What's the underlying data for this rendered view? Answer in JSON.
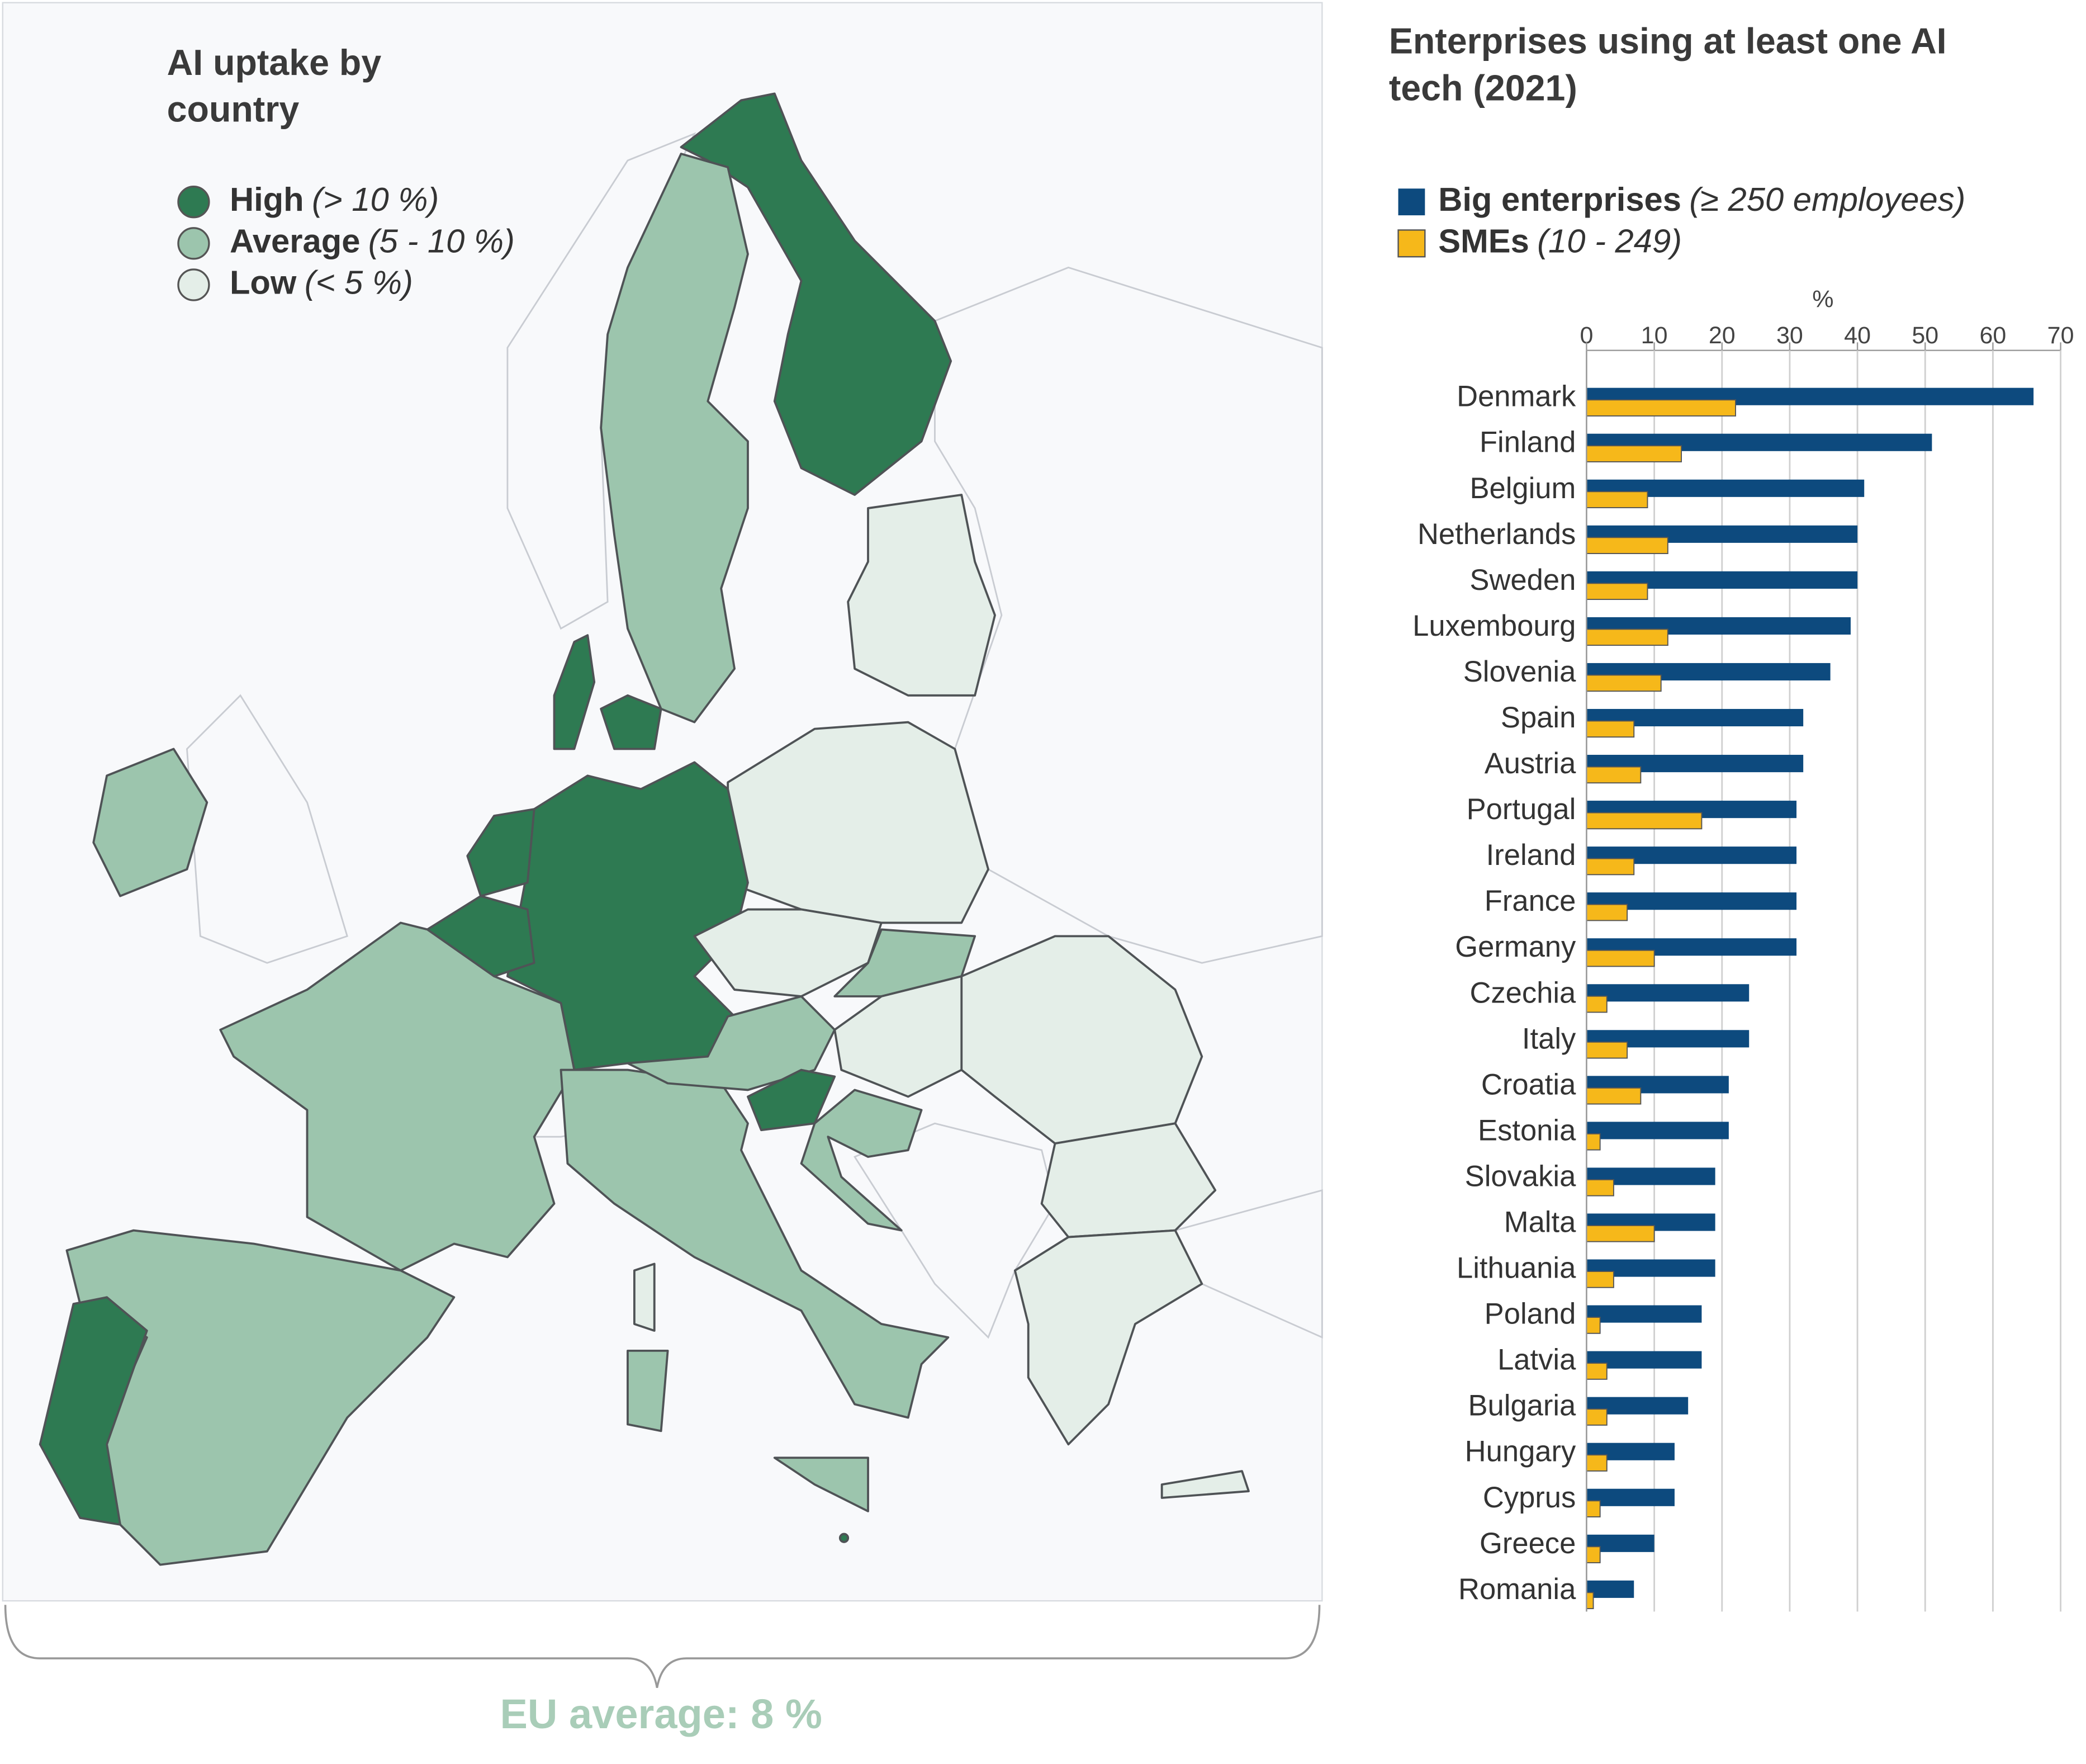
{
  "chart_data": [
    {
      "type": "choropleth",
      "title": "AI uptake by country",
      "legend": [
        {
          "name": "High",
          "range": "(> 10 %)",
          "color": "#2e7a52"
        },
        {
          "name": "Average",
          "range": "(5 - 10 %)",
          "color": "#9cc5ad"
        },
        {
          "name": "Low",
          "range": "(< 5 %)",
          "color": "#e4eee8"
        }
      ],
      "annotation": "EU average: 8 %",
      "annotation_color": "#a9cdb8"
    },
    {
      "type": "bar",
      "orientation": "horizontal",
      "title": "Enterprises using at least one AI tech (2021)",
      "xlabel": "%",
      "categories": [
        "Denmark",
        "Finland",
        "Belgium",
        "Netherlands",
        "Sweden",
        "Luxembourg",
        "Slovenia",
        "Spain",
        "Austria",
        "Portugal",
        "Ireland",
        "France",
        "Germany",
        "Czechia",
        "Italy",
        "Croatia",
        "Estonia",
        "Slovakia",
        "Malta",
        "Lithuania",
        "Poland",
        "Latvia",
        "Bulgaria",
        "Hungary",
        "Cyprus",
        "Greece",
        "Romania"
      ],
      "series": [
        {
          "name": "Big enterprises",
          "note": "(≥ 250 employees)",
          "color": "#0d4a7e",
          "values": [
            66,
            51,
            41,
            40,
            40,
            39,
            36,
            32,
            32,
            31,
            31,
            31,
            31,
            24,
            24,
            21,
            21,
            19,
            19,
            19,
            17,
            17,
            15,
            13,
            13,
            10,
            7
          ]
        },
        {
          "name": "SMEs",
          "note": "(10 - 249)",
          "color": "#f6b81a",
          "values": [
            22,
            14,
            9,
            12,
            9,
            12,
            11,
            7,
            8,
            17,
            7,
            6,
            10,
            3,
            6,
            8,
            2,
            4,
            10,
            4,
            2,
            3,
            3,
            3,
            2,
            2,
            1
          ]
        }
      ],
      "xlim": [
        0,
        70
      ],
      "xticks": [
        0,
        10,
        20,
        30,
        40,
        50,
        60,
        70
      ],
      "grid": true
    }
  ]
}
